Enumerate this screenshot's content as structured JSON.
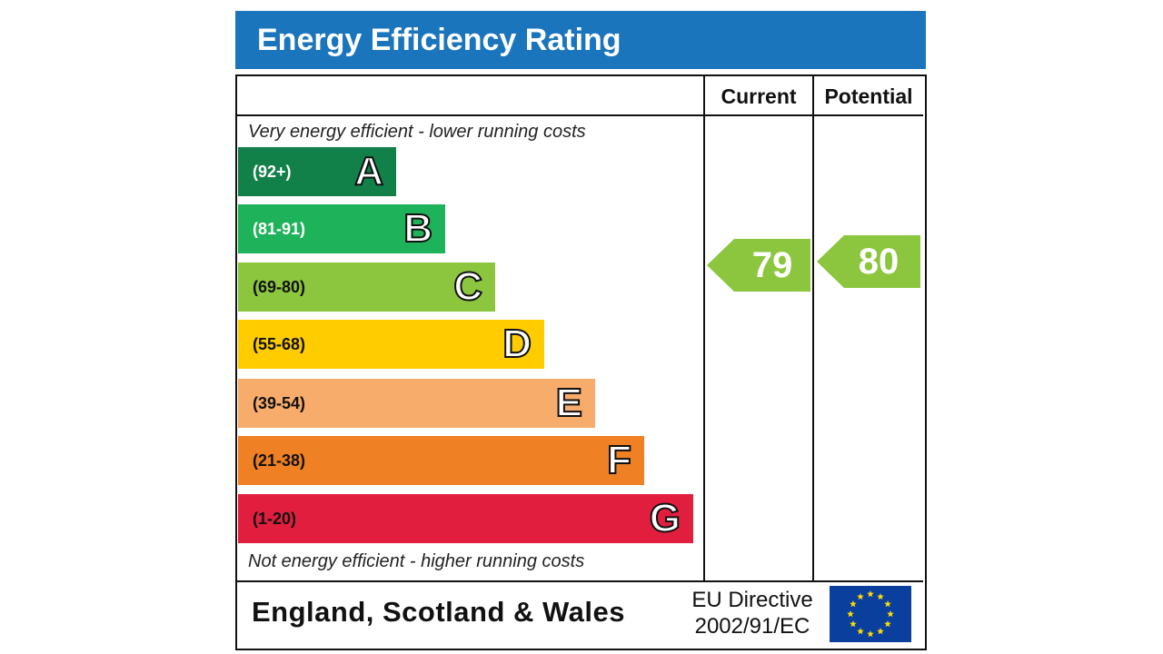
{
  "header": {
    "title": "Energy Efficiency Rating"
  },
  "columns": {
    "current": "Current",
    "potential": "Potential"
  },
  "notes": {
    "top": "Very energy efficient - lower running costs",
    "bottom": "Not energy efficient - higher running costs"
  },
  "bands": [
    {
      "letter": "A",
      "range": "(92+)",
      "color": "#128049",
      "text_color": "#ffffff"
    },
    {
      "letter": "B",
      "range": "(81-91)",
      "color": "#1eb25a",
      "text_color": "#ffffff"
    },
    {
      "letter": "C",
      "range": "(69-80)",
      "color": "#8cc63f",
      "text_color": "#111111"
    },
    {
      "letter": "D",
      "range": "(55-68)",
      "color": "#ffcc00",
      "text_color": "#111111"
    },
    {
      "letter": "E",
      "range": "(39-54)",
      "color": "#f7ac6b",
      "text_color": "#111111"
    },
    {
      "letter": "F",
      "range": "(21-38)",
      "color": "#ef8023",
      "text_color": "#111111"
    },
    {
      "letter": "G",
      "range": "(1-20)",
      "color": "#e21e3e",
      "text_color": "#111111"
    }
  ],
  "ratings": {
    "current": {
      "value": "79",
      "color": "#8cc63f"
    },
    "potential": {
      "value": "80",
      "color": "#8cc63f"
    }
  },
  "footer": {
    "region": "England, Scotland & Wales",
    "directive_line1": "EU Directive",
    "directive_line2": "2002/91/EC",
    "flag_icon": "eu-flag-icon"
  }
}
